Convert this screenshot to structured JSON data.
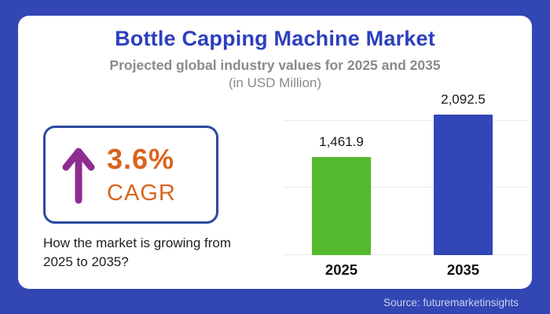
{
  "header": {
    "title": "Bottle Capping Machine Market",
    "subtitle": "Projected global industry values for 2025 and 2035",
    "unit_note": "(in USD Million)"
  },
  "cagr": {
    "value": "3.6%",
    "label": "CAGR",
    "arrow_icon": "up-arrow-icon"
  },
  "question": "How the market is growing from 2025 to 2035?",
  "source": "Source: futuremarketinsights",
  "chart_data": {
    "type": "bar",
    "title": "Bottle Capping Machine Market",
    "subtitle": "Projected global industry values for 2025 and 2035",
    "unit": "USD Million",
    "categories": [
      "2025",
      "2035"
    ],
    "values": [
      1461.9,
      2092.5
    ],
    "value_labels": [
      "1,461.9",
      "2,092.5"
    ],
    "bar_colors": [
      "#55b92d",
      "#3247b7"
    ],
    "xlabel": "",
    "ylabel": "",
    "ylim": [
      0,
      2400
    ],
    "gridline_values": [
      0,
      1000,
      2000
    ],
    "grid": "horizontal, unlabeled ticks",
    "legend": "none",
    "cagr_annotation": "3.6% CAGR"
  },
  "colors": {
    "frame-blue": "#3247b4",
    "title-blue": "#2d3fbe",
    "bar-green": "#55b92d",
    "bar-blue": "#3247b7",
    "cagr-orange": "#d9641f",
    "arrow-purple": "#8e2d90",
    "box-border-blue": "#2c4a9e",
    "subtitle-gray": "#8a8a8a",
    "text-dark": "#212121",
    "gridline": "#ebebeb",
    "source-text": "#c9d1ee"
  }
}
